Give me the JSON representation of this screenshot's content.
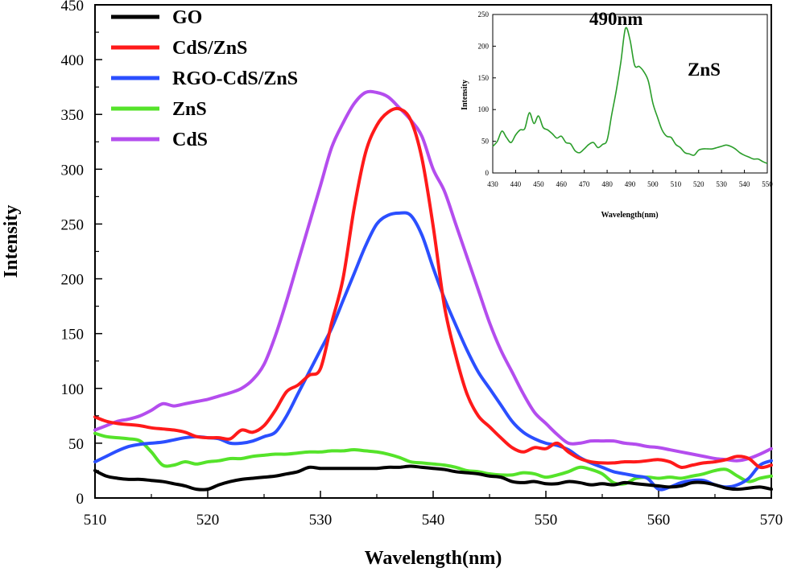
{
  "chart_data": {
    "main": {
      "type": "line",
      "xlabel": "Wavelength(nm)",
      "ylabel": "Intensity",
      "xlim": [
        510,
        570
      ],
      "ylim": [
        0,
        450
      ],
      "xticks": [
        510,
        520,
        530,
        540,
        550,
        560,
        570
      ],
      "yticks": [
        0,
        50,
        100,
        150,
        200,
        250,
        300,
        350,
        400,
        450
      ],
      "legend_position": "top-left",
      "series": [
        {
          "name": "GO",
          "color": "#000000",
          "x": [
            510,
            511,
            512,
            513,
            514,
            515,
            516,
            517,
            518,
            519,
            520,
            521,
            522,
            523,
            524,
            525,
            526,
            527,
            528,
            529,
            530,
            531,
            532,
            533,
            534,
            535,
            536,
            537,
            538,
            539,
            540,
            541,
            542,
            543,
            544,
            545,
            546,
            547,
            548,
            549,
            550,
            551,
            552,
            553,
            554,
            555,
            556,
            557,
            558,
            559,
            560,
            561,
            562,
            563,
            564,
            565,
            566,
            567,
            568,
            569,
            570
          ],
          "y": [
            25,
            20,
            18,
            17,
            17,
            16,
            15,
            13,
            11,
            8,
            8,
            12,
            15,
            17,
            18,
            19,
            20,
            22,
            24,
            28,
            27,
            27,
            27,
            27,
            27,
            27,
            28,
            28,
            29,
            28,
            27,
            26,
            24,
            23,
            22,
            20,
            19,
            15,
            14,
            15,
            13,
            13,
            15,
            14,
            12,
            13,
            12,
            14,
            13,
            12,
            11,
            10,
            11,
            14,
            14,
            12,
            9,
            8,
            9,
            10,
            8
          ]
        },
        {
          "name": "CdS/ZnS",
          "color": "#ff1a1a",
          "x": [
            510,
            511,
            512,
            513,
            514,
            515,
            516,
            517,
            518,
            519,
            520,
            521,
            522,
            523,
            524,
            525,
            526,
            527,
            528,
            529,
            530,
            531,
            532,
            533,
            534,
            535,
            536,
            537,
            538,
            539,
            540,
            541,
            542,
            543,
            544,
            545,
            546,
            547,
            548,
            549,
            550,
            551,
            552,
            553,
            554,
            555,
            556,
            557,
            558,
            559,
            560,
            561,
            562,
            563,
            564,
            565,
            566,
            567,
            568,
            569,
            570
          ],
          "y": [
            74,
            70,
            68,
            67,
            66,
            64,
            63,
            62,
            60,
            56,
            55,
            55,
            54,
            62,
            60,
            66,
            80,
            97,
            103,
            112,
            118,
            160,
            200,
            265,
            315,
            340,
            352,
            355,
            345,
            310,
            248,
            175,
            130,
            95,
            75,
            65,
            55,
            46,
            42,
            46,
            45,
            50,
            42,
            36,
            33,
            32,
            32,
            33,
            33,
            34,
            35,
            33,
            28,
            30,
            32,
            33,
            35,
            38,
            36,
            28,
            30
          ]
        },
        {
          "name": "RGO-CdS/ZnS",
          "color": "#2b4fff",
          "x": [
            510,
            511,
            512,
            513,
            514,
            515,
            516,
            517,
            518,
            519,
            520,
            521,
            522,
            523,
            524,
            525,
            526,
            527,
            528,
            529,
            530,
            531,
            532,
            533,
            534,
            535,
            536,
            537,
            538,
            539,
            540,
            541,
            542,
            543,
            544,
            545,
            546,
            547,
            548,
            549,
            550,
            551,
            552,
            553,
            554,
            555,
            556,
            557,
            558,
            559,
            560,
            561,
            562,
            563,
            564,
            565,
            566,
            567,
            568,
            569,
            570
          ],
          "y": [
            33,
            38,
            43,
            47,
            49,
            50,
            51,
            53,
            55,
            56,
            55,
            54,
            50,
            50,
            52,
            56,
            60,
            75,
            95,
            115,
            135,
            155,
            180,
            205,
            230,
            250,
            258,
            260,
            258,
            240,
            210,
            182,
            158,
            135,
            115,
            100,
            85,
            70,
            60,
            54,
            50,
            48,
            44,
            37,
            32,
            28,
            24,
            22,
            20,
            18,
            8,
            10,
            14,
            16,
            16,
            12,
            10,
            12,
            18,
            30,
            34
          ]
        },
        {
          "name": "ZnS",
          "color": "#55e32a",
          "x": [
            510,
            511,
            512,
            513,
            514,
            515,
            516,
            517,
            518,
            519,
            520,
            521,
            522,
            523,
            524,
            525,
            526,
            527,
            528,
            529,
            530,
            531,
            532,
            533,
            534,
            535,
            536,
            537,
            538,
            539,
            540,
            541,
            542,
            543,
            544,
            545,
            546,
            547,
            548,
            549,
            550,
            551,
            552,
            553,
            554,
            555,
            556,
            557,
            558,
            559,
            560,
            561,
            562,
            563,
            564,
            565,
            566,
            567,
            568,
            569,
            570
          ],
          "y": [
            59,
            56,
            55,
            54,
            52,
            42,
            30,
            30,
            33,
            31,
            33,
            34,
            36,
            36,
            38,
            39,
            40,
            40,
            41,
            42,
            42,
            43,
            43,
            44,
            43,
            42,
            40,
            37,
            33,
            32,
            31,
            30,
            28,
            25,
            24,
            22,
            21,
            21,
            23,
            22,
            19,
            21,
            24,
            28,
            26,
            22,
            14,
            13,
            18,
            19,
            18,
            19,
            18,
            20,
            22,
            25,
            26,
            20,
            15,
            18,
            20
          ]
        },
        {
          "name": "CdS",
          "color": "#b44dee",
          "x": [
            510,
            511,
            512,
            513,
            514,
            515,
            516,
            517,
            518,
            519,
            520,
            521,
            522,
            523,
            524,
            525,
            526,
            527,
            528,
            529,
            530,
            531,
            532,
            533,
            534,
            535,
            536,
            537,
            538,
            539,
            540,
            541,
            542,
            543,
            544,
            545,
            546,
            547,
            548,
            549,
            550,
            551,
            552,
            553,
            554,
            555,
            556,
            557,
            558,
            559,
            560,
            561,
            562,
            563,
            564,
            565,
            566,
            567,
            568,
            569,
            570
          ],
          "y": [
            62,
            66,
            70,
            72,
            75,
            80,
            86,
            84,
            86,
            88,
            90,
            93,
            96,
            100,
            108,
            122,
            148,
            180,
            215,
            250,
            285,
            320,
            342,
            360,
            370,
            370,
            366,
            356,
            345,
            330,
            300,
            280,
            250,
            220,
            190,
            160,
            135,
            115,
            95,
            78,
            68,
            58,
            50,
            50,
            52,
            52,
            52,
            50,
            49,
            47,
            46,
            44,
            42,
            40,
            38,
            36,
            35,
            34,
            36,
            40,
            45
          ]
        }
      ]
    },
    "inset": {
      "type": "line",
      "title": "490nm",
      "annotation": "ZnS",
      "xlabel": "Wavelength(nm)",
      "ylabel": "Intensity",
      "xlim": [
        430,
        550
      ],
      "ylim": [
        0,
        250
      ],
      "xticks": [
        430,
        440,
        450,
        460,
        470,
        480,
        490,
        500,
        510,
        520,
        530,
        540,
        550
      ],
      "yticks": [
        0,
        50,
        100,
        150,
        200,
        250
      ],
      "series": [
        {
          "name": "ZnS",
          "color": "#2a9d2a",
          "x": [
            430,
            432,
            434,
            436,
            438,
            440,
            442,
            444,
            446,
            448,
            450,
            452,
            454,
            456,
            458,
            460,
            462,
            464,
            466,
            468,
            470,
            472,
            474,
            476,
            478,
            480,
            482,
            484,
            486,
            488,
            490,
            492,
            494,
            496,
            498,
            500,
            502,
            504,
            506,
            508,
            510,
            512,
            514,
            516,
            518,
            520,
            522,
            524,
            526,
            528,
            530,
            532,
            534,
            536,
            538,
            540,
            542,
            544,
            546,
            548,
            550
          ],
          "y": [
            42,
            50,
            66,
            56,
            48,
            60,
            68,
            70,
            95,
            78,
            90,
            72,
            68,
            62,
            55,
            58,
            48,
            46,
            35,
            32,
            38,
            45,
            48,
            40,
            45,
            52,
            92,
            130,
            175,
            228,
            210,
            170,
            168,
            160,
            145,
            110,
            88,
            68,
            58,
            56,
            45,
            40,
            32,
            30,
            28,
            36,
            38,
            38,
            38,
            40,
            42,
            44,
            42,
            38,
            32,
            28,
            25,
            22,
            22,
            18,
            15
          ]
        }
      ]
    }
  }
}
